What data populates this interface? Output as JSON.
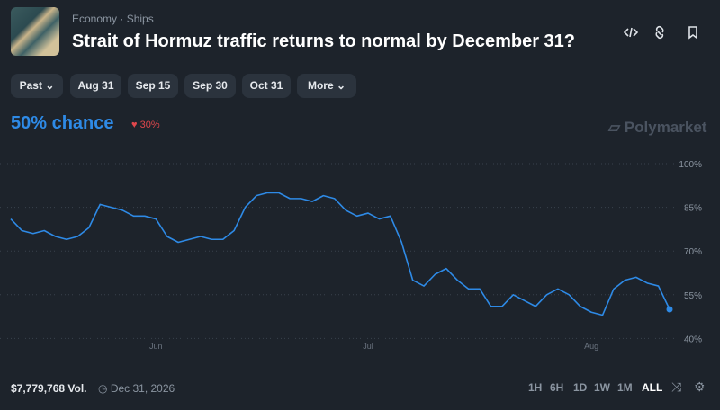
{
  "header": {
    "breadcrumb": [
      "Economy",
      "Ships"
    ],
    "title": "Strait of Hormuz traffic returns to normal by December 31?"
  },
  "filters": [
    "Past",
    "Aug 31",
    "Sep 15",
    "Sep 30",
    "Oct 31",
    "More"
  ],
  "chance": "50% chance",
  "change": "30%",
  "brand": "Polymarket",
  "chart_data": {
    "type": "line",
    "categories": [
      null,
      null,
      null,
      null,
      null,
      null,
      null,
      null,
      null,
      null,
      null,
      null,
      null,
      "Jun",
      null,
      null,
      null,
      null,
      null,
      null,
      null,
      null,
      null,
      null,
      null,
      null,
      null,
      null,
      null,
      null,
      null,
      null,
      "Jul",
      null,
      null,
      null,
      null,
      null,
      null,
      null,
      null,
      null,
      null,
      null,
      null,
      null,
      null,
      null,
      null,
      null,
      null,
      null,
      "Aug",
      null,
      null,
      null,
      null,
      null,
      null,
      null
    ],
    "series": [
      {
        "name": "Yes",
        "color": "#2e8ae6",
        "values": [
          81,
          77,
          76,
          77,
          75,
          74,
          75,
          78,
          86,
          85,
          84,
          82,
          82,
          81,
          75,
          73,
          74,
          75,
          74,
          74,
          77,
          85,
          89,
          90,
          90,
          88,
          88,
          87,
          89,
          88,
          84,
          82,
          83,
          81,
          82,
          73,
          60,
          58,
          62,
          64,
          60,
          57,
          57,
          51,
          51,
          55,
          53,
          51,
          55,
          57,
          55,
          51,
          49,
          48,
          57,
          60,
          61,
          59,
          58,
          50
        ]
      }
    ],
    "ylim": [
      40,
      100
    ],
    "yticks": [
      {
        "value": 100,
        "label": "100%"
      },
      {
        "value": 85,
        "label": "85%"
      },
      {
        "value": 70,
        "label": "70%"
      },
      {
        "value": 55,
        "label": "55%"
      },
      {
        "value": 40,
        "label": "40%"
      }
    ],
    "grid": true
  },
  "footer": {
    "volume": "$7,779,768 Vol.",
    "end_date": "Dec 31, 2026",
    "ranges": [
      "1H",
      "6H",
      "1D",
      "1W",
      "1M",
      "ALL"
    ]
  }
}
